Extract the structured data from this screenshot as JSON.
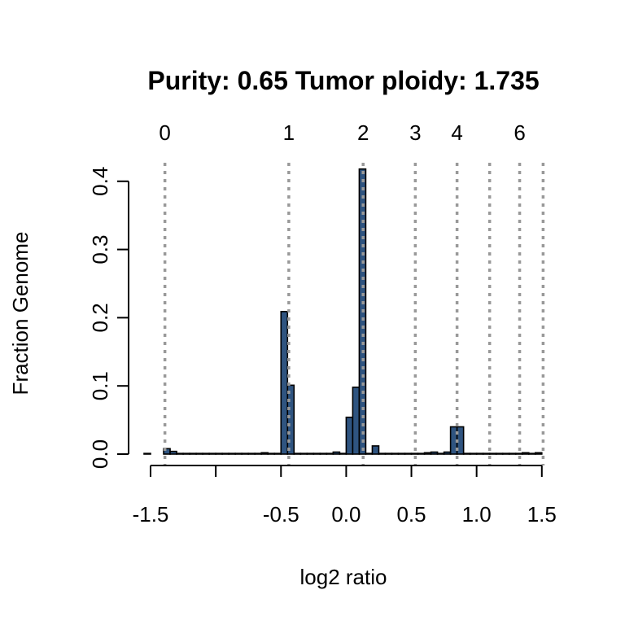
{
  "chart_data": {
    "type": "bar",
    "title": "Purity: 0.65  Tumor ploidy: 1.735",
    "xlabel": "log2 ratio",
    "ylabel": "Fraction Genome",
    "xlim": [
      -1.55,
      1.52
    ],
    "ylim": [
      0,
      0.42
    ],
    "x_ticks": [
      -1.5,
      -1.0,
      -0.5,
      0.0,
      0.5,
      1.0,
      1.5
    ],
    "x_tick_labels": [
      "-1.5",
      "",
      "-0.5",
      "0.0",
      "0.5",
      "1.0",
      "1.5"
    ],
    "y_ticks": [
      0.0,
      0.1,
      0.2,
      0.3,
      0.4
    ],
    "y_tick_labels": [
      "0.0",
      "0.1",
      "0.2",
      "0.3",
      "0.4"
    ],
    "bin_width": 0.05,
    "bins": [
      {
        "x0": -1.55,
        "value": 0.001
      },
      {
        "x0": -1.4,
        "value": 0.008
      },
      {
        "x0": -1.35,
        "value": 0.004
      },
      {
        "x0": -1.3,
        "value": 0.001
      },
      {
        "x0": -1.25,
        "value": 0.001
      },
      {
        "x0": -1.2,
        "value": 0.001
      },
      {
        "x0": -1.15,
        "value": 0.001
      },
      {
        "x0": -1.1,
        "value": 0.001
      },
      {
        "x0": -1.05,
        "value": 0.001
      },
      {
        "x0": -1.0,
        "value": 0.001
      },
      {
        "x0": -0.95,
        "value": 0.001
      },
      {
        "x0": -0.9,
        "value": 0.001
      },
      {
        "x0": -0.85,
        "value": 0.001
      },
      {
        "x0": -0.8,
        "value": 0.001
      },
      {
        "x0": -0.75,
        "value": 0.001
      },
      {
        "x0": -0.7,
        "value": 0.001
      },
      {
        "x0": -0.65,
        "value": 0.002
      },
      {
        "x0": -0.6,
        "value": 0.001
      },
      {
        "x0": -0.55,
        "value": 0.001
      },
      {
        "x0": -0.5,
        "value": 0.209
      },
      {
        "x0": -0.45,
        "value": 0.101
      },
      {
        "x0": -0.4,
        "value": 0.001
      },
      {
        "x0": -0.35,
        "value": 0.001
      },
      {
        "x0": -0.3,
        "value": 0.001
      },
      {
        "x0": -0.25,
        "value": 0.001
      },
      {
        "x0": -0.2,
        "value": 0.001
      },
      {
        "x0": -0.15,
        "value": 0.001
      },
      {
        "x0": -0.1,
        "value": 0.003
      },
      {
        "x0": -0.05,
        "value": 0.001
      },
      {
        "x0": 0.0,
        "value": 0.054
      },
      {
        "x0": 0.05,
        "value": 0.098
      },
      {
        "x0": 0.1,
        "value": 0.418
      },
      {
        "x0": 0.15,
        "value": 0.001
      },
      {
        "x0": 0.2,
        "value": 0.012
      },
      {
        "x0": 0.25,
        "value": 0.001
      },
      {
        "x0": 0.3,
        "value": 0.001
      },
      {
        "x0": 0.35,
        "value": 0.001
      },
      {
        "x0": 0.4,
        "value": 0.001
      },
      {
        "x0": 0.45,
        "value": 0.001
      },
      {
        "x0": 0.5,
        "value": 0.001
      },
      {
        "x0": 0.55,
        "value": 0.001
      },
      {
        "x0": 0.6,
        "value": 0.002
      },
      {
        "x0": 0.65,
        "value": 0.003
      },
      {
        "x0": 0.7,
        "value": 0.001
      },
      {
        "x0": 0.75,
        "value": 0.003
      },
      {
        "x0": 0.8,
        "value": 0.04
      },
      {
        "x0": 0.85,
        "value": 0.04
      },
      {
        "x0": 0.9,
        "value": 0.001
      },
      {
        "x0": 0.95,
        "value": 0.001
      },
      {
        "x0": 1.0,
        "value": 0.001
      },
      {
        "x0": 1.05,
        "value": 0.001
      },
      {
        "x0": 1.1,
        "value": 0.001
      },
      {
        "x0": 1.15,
        "value": 0.001
      },
      {
        "x0": 1.2,
        "value": 0.001
      },
      {
        "x0": 1.25,
        "value": 0.001
      },
      {
        "x0": 1.3,
        "value": 0.001
      },
      {
        "x0": 1.35,
        "value": 0.002
      },
      {
        "x0": 1.4,
        "value": 0.001
      },
      {
        "x0": 1.45,
        "value": 0.002
      }
    ],
    "copy_number_lines": [
      {
        "cn": 0,
        "x": -1.39,
        "label": "0"
      },
      {
        "cn": 1,
        "x": -0.44,
        "label": "1"
      },
      {
        "cn": 2,
        "x": 0.13,
        "label": "2"
      },
      {
        "cn": 3,
        "x": 0.53,
        "label": "3"
      },
      {
        "cn": 4,
        "x": 0.85,
        "label": "4"
      },
      {
        "cn": 5,
        "x": 1.1,
        "label": ""
      },
      {
        "cn": 6,
        "x": 1.33,
        "label": "6"
      },
      {
        "cn": 7,
        "x": 1.51,
        "label": ""
      }
    ],
    "bar_fill": "#2f5480",
    "bar_stroke": "#000000",
    "cn_line_color": "#999999",
    "grid": false
  }
}
